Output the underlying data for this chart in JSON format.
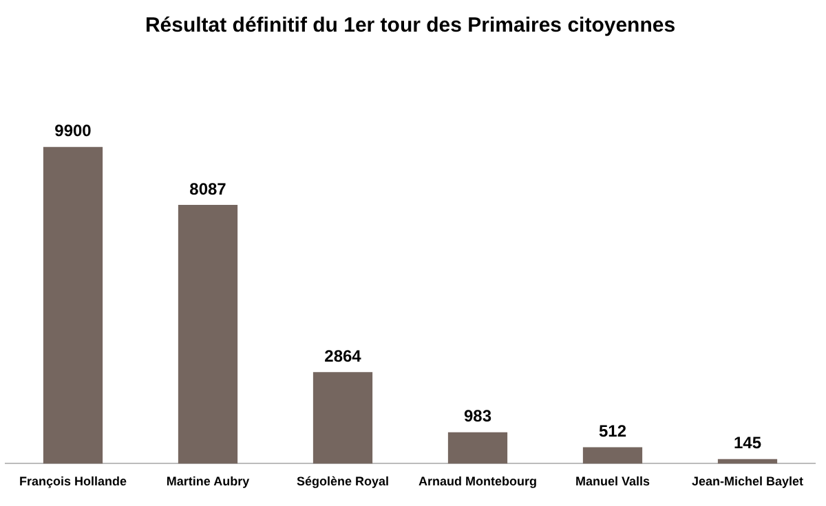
{
  "chart_data": {
    "type": "bar",
    "title": "Résultat définitif du 1er tour des Primaires citoyennes",
    "categories": [
      "François Hollande",
      "Martine Aubry",
      "Ségolène Royal",
      "Arnaud Montebourg",
      "Manuel Valls",
      "Jean-Michel Baylet"
    ],
    "values": [
      9900,
      8087,
      2864,
      983,
      512,
      145
    ],
    "color": "#75665f",
    "data_labels": true,
    "grid": false,
    "legend": false,
    "tick_labels": "x"
  }
}
